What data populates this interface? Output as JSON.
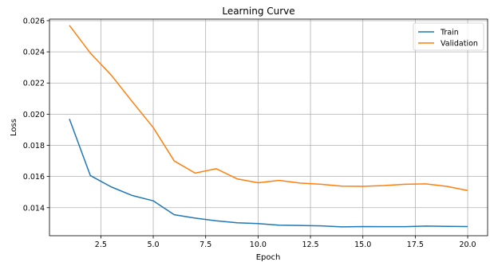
{
  "chart_data": {
    "type": "line",
    "title": "Learning Curve",
    "xlabel": "Epoch",
    "ylabel": "Loss",
    "xlim": [
      0.05,
      20.95
    ],
    "ylim": [
      0.0122,
      0.0261
    ],
    "xticks": [
      2.5,
      5.0,
      7.5,
      10.0,
      12.5,
      15.0,
      17.5,
      20.0
    ],
    "xtick_labels": [
      "2.5",
      "5.0",
      "7.5",
      "10.0",
      "12.5",
      "15.0",
      "17.5",
      "20.0"
    ],
    "yticks": [
      0.014,
      0.016,
      0.018,
      0.02,
      0.022,
      0.024,
      0.026
    ],
    "ytick_labels": [
      "0.014",
      "0.016",
      "0.018",
      "0.020",
      "0.022",
      "0.024",
      "0.026"
    ],
    "grid": true,
    "legend_position": "top-right",
    "x": [
      1,
      2,
      3,
      4,
      5,
      6,
      7,
      8,
      9,
      10,
      11,
      12,
      13,
      14,
      15,
      16,
      17,
      18,
      19,
      20
    ],
    "series": [
      {
        "name": "Train",
        "color": "#1f77b4",
        "values": [
          0.0197,
          0.01606,
          0.01533,
          0.01478,
          0.01444,
          0.01355,
          0.01333,
          0.01316,
          0.01303,
          0.01298,
          0.01288,
          0.01286,
          0.01283,
          0.01277,
          0.01279,
          0.01278,
          0.01278,
          0.01282,
          0.0128,
          0.01279
        ]
      },
      {
        "name": "Validation",
        "color": "#ff7f0e",
        "values": [
          0.0257,
          0.02392,
          0.0225,
          0.0208,
          0.01914,
          0.017,
          0.01622,
          0.0165,
          0.01585,
          0.0156,
          0.01575,
          0.01558,
          0.0155,
          0.01538,
          0.01537,
          0.01542,
          0.0155,
          0.01553,
          0.01537,
          0.0151
        ]
      }
    ]
  }
}
